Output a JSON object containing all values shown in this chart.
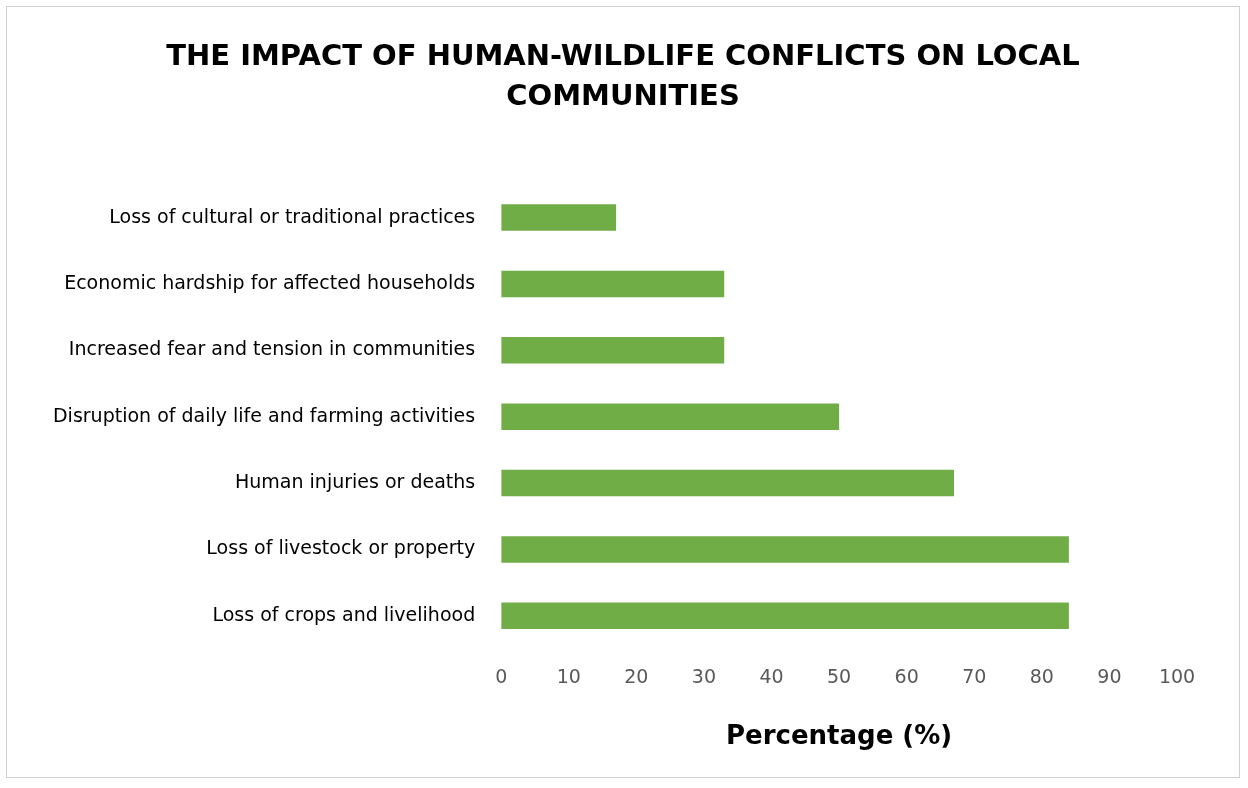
{
  "chart_data": {
    "type": "bar",
    "orientation": "horizontal",
    "title": "THE IMPACT OF HUMAN-WILDLIFE CONFLICTS ON LOCAL COMMUNITIES",
    "xlabel": "Percentage (%)",
    "categories": [
      "Loss of cultural or traditional practices",
      "Economic hardship for affected households",
      "Increased fear and tension in communities",
      "Disruption of daily life and farming activities",
      "Human injuries or deaths",
      "Loss of livestock or property",
      "Loss of crops and livelihood"
    ],
    "values": [
      17,
      33,
      33,
      50,
      67,
      84,
      84
    ],
    "color": "#70ad47",
    "xlim": [
      0,
      100
    ],
    "xticks": [
      0,
      10,
      20,
      30,
      40,
      50,
      60,
      70,
      80,
      90,
      100
    ],
    "grid": false,
    "legend": false
  }
}
